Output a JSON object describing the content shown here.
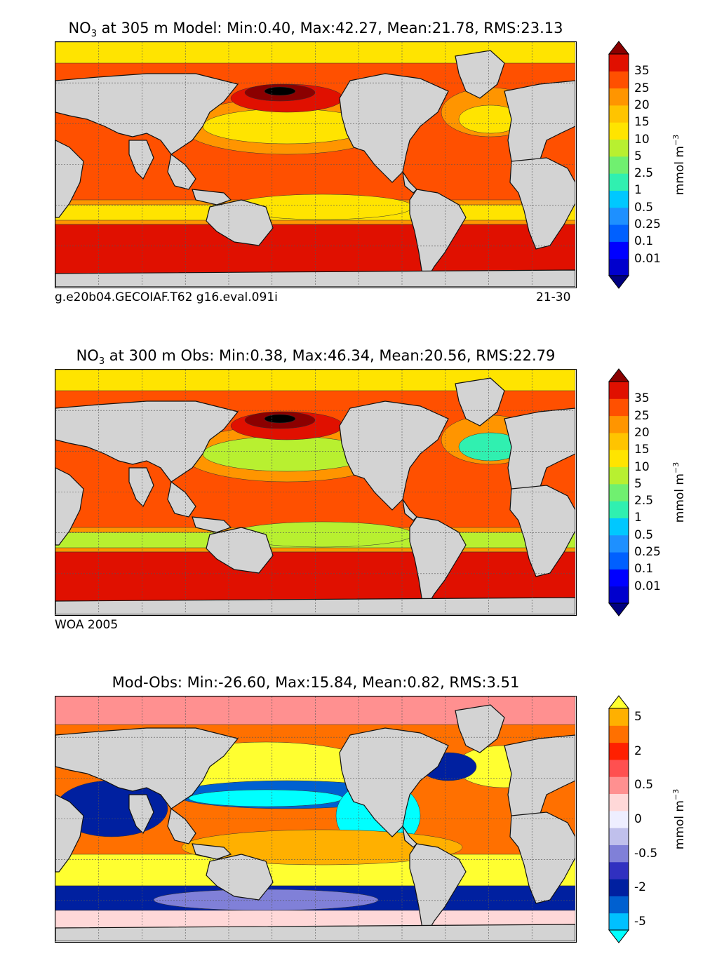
{
  "chart_data": [
    {
      "type": "heatmap",
      "title_prefix": "NO",
      "title_sub": "3",
      "title_rest": " at 305 m Model: Min:0.40, Max:42.27, Mean:21.78, RMS:23.13",
      "footer_left": "g.e20b04.GECOIAF.T62 g16.eval.091i",
      "footer_right": "21-30",
      "colorbar": {
        "ticks": [
          "35",
          "25",
          "20",
          "15",
          "10",
          "5",
          "2.5",
          "1",
          "0.5",
          "0.25",
          "0.1",
          "0.01"
        ],
        "colors": [
          "#000080",
          "#0000cd",
          "#0000ff",
          "#0060ff",
          "#1e90ff",
          "#00c8ff",
          "#30f0b0",
          "#70f070",
          "#b8f030",
          "#ffe400",
          "#ffc400",
          "#ff9500",
          "#ff5000",
          "#e01000",
          "#8b0000"
        ],
        "label": "mmol m",
        "label_sup": "−3"
      }
    },
    {
      "type": "heatmap",
      "title_prefix": "NO",
      "title_sub": "3",
      "title_rest": " at 300 m Obs: Min:0.38, Max:46.34, Mean:20.56, RMS:22.79",
      "footer_left": "WOA 2005",
      "colorbar": {
        "ticks": [
          "35",
          "25",
          "20",
          "15",
          "10",
          "5",
          "2.5",
          "1",
          "0.5",
          "0.25",
          "0.1",
          "0.01"
        ],
        "colors": [
          "#000080",
          "#0000cd",
          "#0000ff",
          "#0060ff",
          "#1e90ff",
          "#00c8ff",
          "#30f0b0",
          "#70f070",
          "#b8f030",
          "#ffe400",
          "#ffc400",
          "#ff9500",
          "#ff5000",
          "#e01000",
          "#8b0000"
        ],
        "label": "mmol m",
        "label_sup": "−3"
      }
    },
    {
      "type": "heatmap",
      "title_rest": "Mod-Obs: Min:-26.60, Max:15.84, Mean:0.82, RMS:3.51",
      "colorbar": {
        "ticks": [
          "5",
          "2",
          "0.5",
          "0",
          "-0.5",
          "-2",
          "-5"
        ],
        "tick_index": [
          13,
          11,
          9,
          7,
          5,
          3,
          1
        ],
        "colors": [
          "#00ffff",
          "#00c0ff",
          "#0060d0",
          "#0020a0",
          "#3030c0",
          "#8080d8",
          "#c0c0ec",
          "#eeeeff",
          "#ffd8d8",
          "#ff9090",
          "#ff5050",
          "#ff2000",
          "#ff7000",
          "#ffb000",
          "#ffff30"
        ],
        "label": "mmol m",
        "label_sup": "−3"
      }
    }
  ]
}
